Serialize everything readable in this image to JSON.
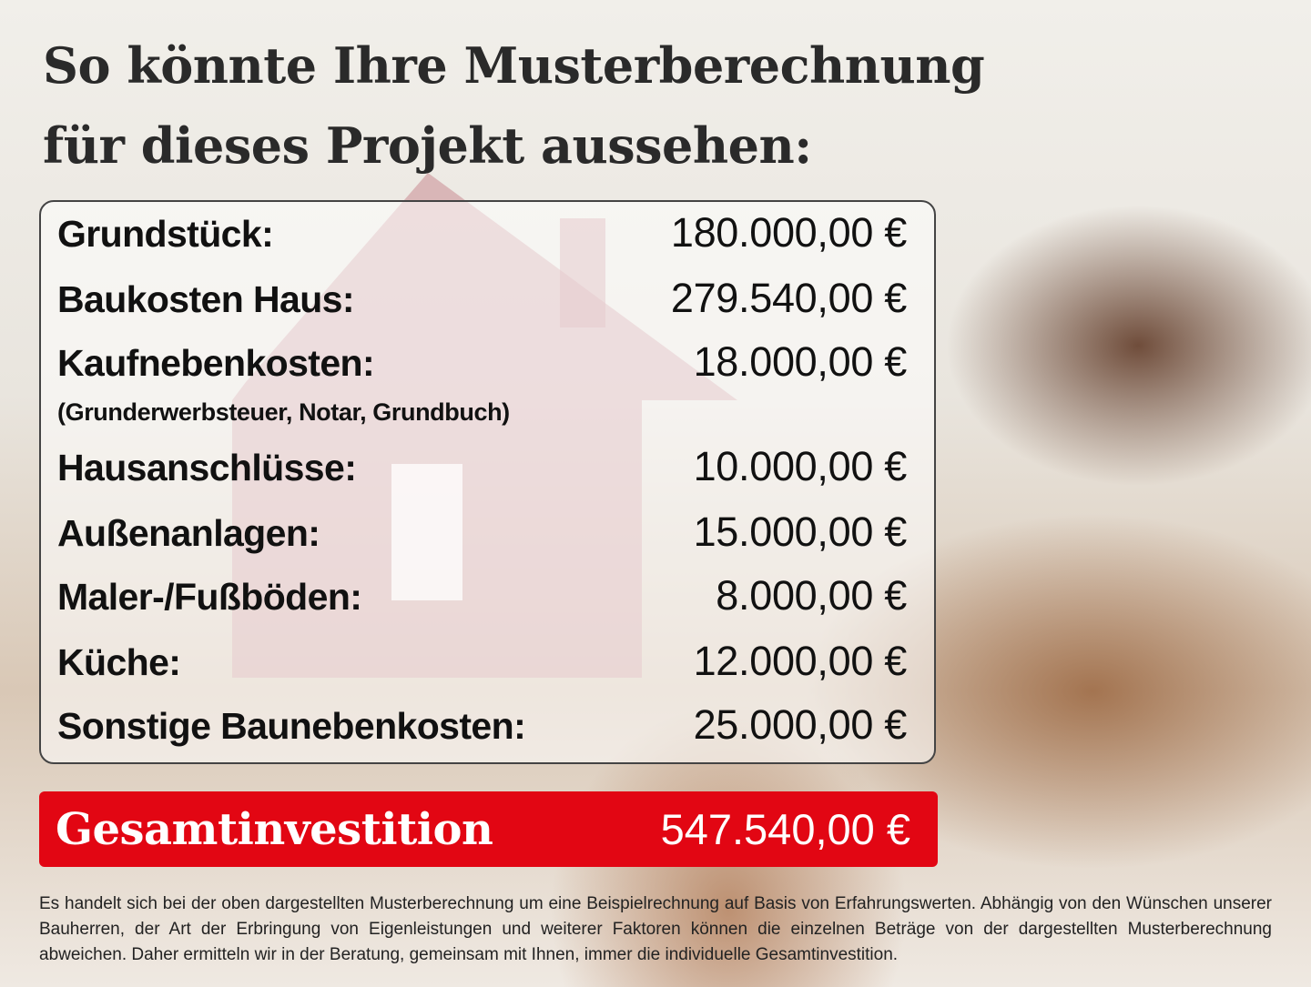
{
  "title": {
    "line1": "So könnte Ihre Musterberechnung",
    "line2": "für dieses Projekt aussehen:"
  },
  "items": [
    {
      "label": "Grundstück:",
      "value": "180.000,00 €"
    },
    {
      "label": "Baukosten Haus:",
      "value": "279.540,00 €"
    },
    {
      "label": "Kaufnebenkosten:",
      "value": "18.000,00 €",
      "note": "(Grunderwerbsteuer, Notar, Grundbuch)"
    },
    {
      "label": "Hausanschlüsse:",
      "value": "10.000,00 €"
    },
    {
      "label": "Außenanlagen:",
      "value": "15.000,00 €"
    },
    {
      "label": "Maler-/Fußböden:",
      "value": "8.000,00 €"
    },
    {
      "label": "Küche:",
      "value": "12.000,00 €"
    },
    {
      "label": "Sonstige Baunebenkosten:",
      "value": "25.000,00 €"
    }
  ],
  "total": {
    "label": "Gesamtinvestition",
    "value": "547.540,00 €"
  },
  "disclaimer": "Es handelt sich bei der oben dargestellten Musterberechnung um eine Beispielrechnung auf Basis von Erfahrungswerten. Abhängig von den Wünschen unserer Bauherren, der Art der Erbringung von Eigenleistungen und weiterer Faktoren können die einzelnen Beträge von der dargestellten Musterberechnung abweichen. Daher ermitteln wir in der Beratung, gemeinsam mit Ihnen, immer die individuelle Gesamtinvestition.",
  "colors": {
    "accent": "#e20613",
    "house": "#d9a0a6"
  }
}
